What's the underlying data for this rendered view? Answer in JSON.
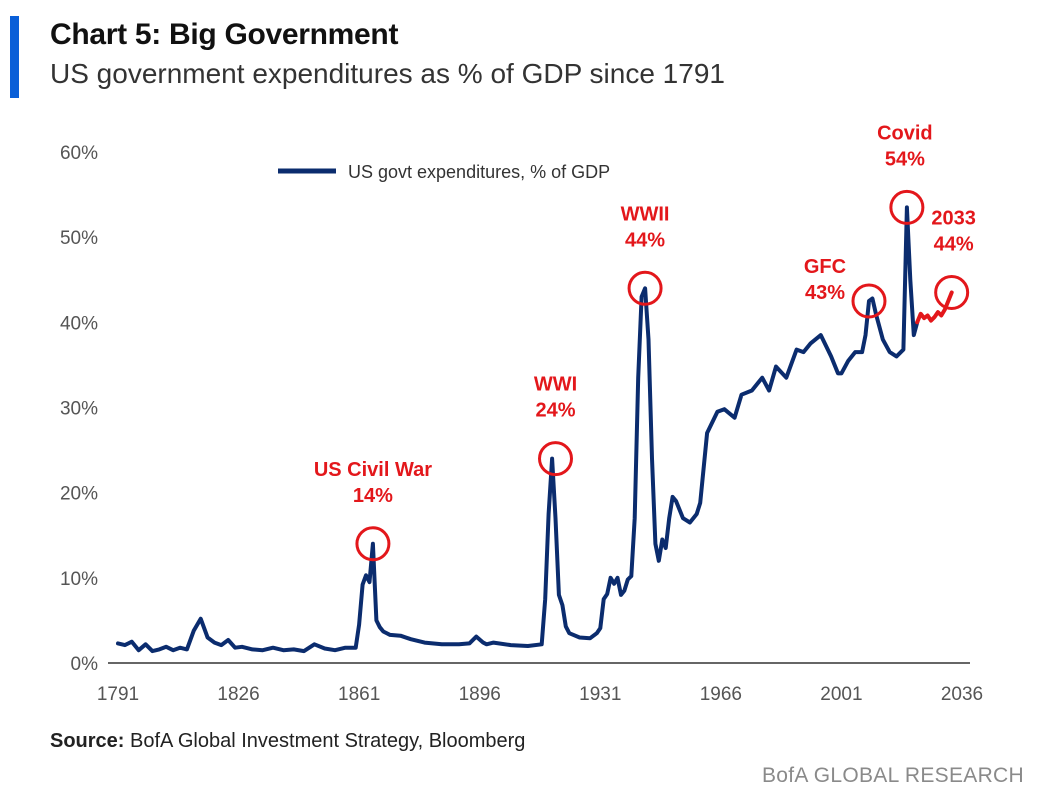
{
  "header": {
    "title": "Chart 5: Big Government",
    "subtitle": "US government expenditures as % of GDP since 1791"
  },
  "footer": {
    "source_label": "Source:",
    "source_text": " BofA Global Investment Strategy, Bloomberg",
    "brand": "BofA GLOBAL RESEARCH"
  },
  "colors": {
    "accent": "#0a5fd8",
    "series": "#0b2c6e",
    "projection": "#e3171b",
    "annotation": "#e3171b"
  },
  "chart_data": {
    "type": "line",
    "title": "",
    "xlabel": "",
    "ylabel": "",
    "xlim": [
      1791,
      2036
    ],
    "ylim": [
      0,
      60
    ],
    "x_ticks": [
      "1791",
      "1826",
      "1861",
      "1896",
      "1931",
      "1966",
      "2001",
      "2036"
    ],
    "x_tick_values": [
      1791,
      1826,
      1861,
      1896,
      1931,
      1966,
      2001,
      2036
    ],
    "y_ticks": [
      "0%",
      "10%",
      "20%",
      "30%",
      "40%",
      "50%",
      "60%"
    ],
    "y_tick_values": [
      0,
      10,
      20,
      30,
      40,
      50,
      60
    ],
    "grid": false,
    "legend_position": "top-center",
    "series": [
      {
        "name": "US govt expenditures, % of GDP",
        "style": "actual",
        "x": [
          1791,
          1793,
          1795,
          1797,
          1799,
          1801,
          1803,
          1805,
          1807,
          1809,
          1811,
          1813,
          1815,
          1817,
          1819,
          1821,
          1823,
          1825,
          1827,
          1830,
          1833,
          1836,
          1839,
          1842,
          1845,
          1848,
          1851,
          1854,
          1857,
          1860,
          1861,
          1862,
          1863,
          1864,
          1865,
          1866,
          1867,
          1868,
          1870,
          1873,
          1876,
          1880,
          1885,
          1890,
          1893,
          1895,
          1897,
          1898,
          1900,
          1905,
          1910,
          1914,
          1915,
          1916,
          1917,
          1918,
          1919,
          1920,
          1921,
          1922,
          1925,
          1928,
          1930,
          1931,
          1932,
          1933,
          1934,
          1935,
          1936,
          1937,
          1938,
          1939,
          1940,
          1941,
          1942,
          1943,
          1944,
          1945,
          1946,
          1947,
          1948,
          1949,
          1950,
          1951,
          1952,
          1953,
          1955,
          1957,
          1959,
          1960,
          1962,
          1965,
          1967,
          1970,
          1972,
          1975,
          1978,
          1980,
          1982,
          1985,
          1988,
          1990,
          1992,
          1995,
          1998,
          2000,
          2001,
          2003,
          2005,
          2007,
          2008,
          2009,
          2010,
          2011,
          2013,
          2015,
          2017,
          2019,
          2020,
          2021,
          2022,
          2023
        ],
        "y": [
          2.3,
          2.1,
          2.5,
          1.5,
          2.2,
          1.4,
          1.6,
          1.9,
          1.5,
          1.8,
          1.6,
          3.8,
          5.2,
          3.0,
          2.4,
          2.1,
          2.7,
          1.8,
          1.9,
          1.6,
          1.5,
          1.8,
          1.5,
          1.6,
          1.4,
          2.2,
          1.7,
          1.5,
          1.8,
          1.8,
          4.5,
          9.2,
          10.3,
          9.5,
          14.0,
          5.0,
          4.2,
          3.7,
          3.3,
          3.2,
          2.8,
          2.4,
          2.2,
          2.2,
          2.3,
          3.1,
          2.4,
          2.2,
          2.4,
          2.1,
          2.0,
          2.2,
          7.5,
          17.5,
          24.0,
          17.0,
          8.0,
          6.8,
          4.3,
          3.5,
          3.0,
          2.9,
          3.5,
          4.1,
          7.5,
          8.1,
          10.0,
          9.3,
          10.0,
          8.0,
          8.5,
          9.8,
          10.2,
          17.0,
          33.5,
          43.0,
          44.0,
          38.0,
          24.0,
          14.0,
          12.0,
          14.5,
          13.5,
          17.0,
          19.5,
          19.0,
          17.0,
          16.5,
          17.5,
          18.8,
          27.0,
          29.5,
          29.8,
          28.8,
          31.5,
          32.0,
          33.5,
          32.0,
          34.8,
          33.5,
          36.8,
          36.5,
          37.5,
          38.5,
          36.0,
          34.0,
          34.0,
          35.5,
          36.5,
          36.5,
          38.5,
          42.5,
          42.8,
          41.0,
          38.0,
          36.5,
          36.0,
          36.8,
          53.5,
          45.0,
          38.5,
          40.0
        ]
      },
      {
        "name": "",
        "style": "projection",
        "x": [
          2023,
          2024,
          2025,
          2026,
          2027,
          2028,
          2029,
          2030,
          2031,
          2033
        ],
        "y": [
          40.0,
          41.0,
          40.5,
          40.8,
          40.2,
          40.6,
          41.2,
          40.8,
          41.5,
          43.5
        ]
      }
    ],
    "annotations": [
      {
        "label": "US Civil War",
        "value_label": "14%",
        "x": 1865,
        "y": 14
      },
      {
        "label": "WWI",
        "value_label": "24%",
        "x": 1918,
        "y": 24
      },
      {
        "label": "WWII",
        "value_label": "44%",
        "x": 1944,
        "y": 44
      },
      {
        "label": "GFC",
        "value_label": "43%",
        "x": 2009,
        "y": 42.5
      },
      {
        "label": "Covid",
        "value_label": "54%",
        "x": 2020,
        "y": 53.5
      },
      {
        "label": "2033",
        "value_label": "44%",
        "x": 2033,
        "y": 43.5
      }
    ]
  }
}
